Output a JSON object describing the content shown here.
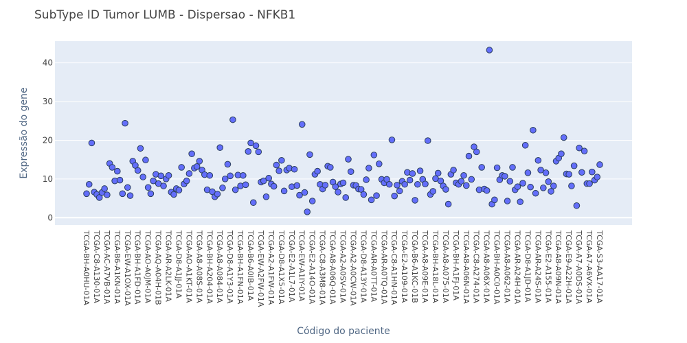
{
  "chart_data": {
    "type": "scatter",
    "title": "SubType ID Tumor LUMB - Dispersao - NFKB1",
    "xlabel": "Código do paciente",
    "ylabel": "Expressão do gene",
    "ylim": [
      -1.9,
      45.6
    ],
    "yticks": [
      0,
      10,
      20,
      30,
      40
    ],
    "grid": true,
    "legend": "none",
    "colors": {
      "marker_fill": "#636efa",
      "marker_edge": "#2a3f5f",
      "plot_bg": "#e5ecf6",
      "grid": "#ffffff"
    },
    "x_tick_labels": [
      "TCGA-BH-A0HU-01A",
      "TCGA-C8-A130-01A",
      "TCGA-AC-A7VB-01A",
      "TCGA-B6-A1KN-01A",
      "TCGA-EW-A1OX-01A",
      "TCGA-BH-A1FD-01A",
      "TCGA-AO-A0JM-01A",
      "TCGA-AQ-A04H-01B",
      "TCGA-AR-A2LK-01A",
      "TCGA-D8-A1JJ-01A",
      "TCGA-AO-A1KT-01A",
      "TCGA-A8-A08S-01A",
      "TCGA-BH-A204-01A",
      "TCGA-A8-A084-01A",
      "TCGA-D8-A1Y3-01A",
      "TCGA-BH-A1FN-01A",
      "TCGA-B6-A0IB-01A",
      "TCGA-EW-A2FW-01A",
      "TCGA-A2-A1FW-01A",
      "TCGA-D8-A1X5-01A",
      "TCGA-E2-A1L7-01A",
      "TCGA-EW-A1IY-01A",
      "TCGA-E2-A14O-01A",
      "TCGA-C8-A3M8-01A",
      "TCGA-A8-A06Q-01A",
      "TCGA-A2-A0SV-01A",
      "TCGA-A2-A0CW-01A",
      "TCGA-D8-A13Y-01A",
      "TCGA-AR-A0TT-01A",
      "TCGA-AR-A0TQ-01A",
      "TCGA-C8-A1HN-01A",
      "TCGA-E2-A109-01A",
      "TCGA-B6-A1KC-01B",
      "TCGA-A8-A09E-01A",
      "TCGA-BH-A18L-01A",
      "TCGA-A8-A075-01A",
      "TCGA-BH-A1FJ-01A",
      "TCGA-A8-A06N-01A",
      "TCGA-C8-A274-01A",
      "TCGA-A8-A06X-01A",
      "TCGA-BH-A0C0-01A",
      "TCGA-A8-A062-01A",
      "TCGA-AR-A24H-01A",
      "TCGA-D8-A1JD-01A",
      "TCGA-AR-A24S-01A",
      "TCGA-E2-A155-01A",
      "TCGA-A8-A09N-01A",
      "TCGA-E9-A22H-01A",
      "TCGA-A7-A0DS-01A",
      "TCGA-A7-A6VX-01A",
      "TCGA-S3-AA17-01A"
    ],
    "y": [
      6.2,
      8.6,
      19.3,
      6.6,
      6.0,
      5.2,
      6.5,
      7.5,
      5.9,
      14.0,
      13.0,
      9.5,
      12.0,
      9.7,
      6.2,
      24.4,
      7.8,
      5.7,
      14.6,
      13.5,
      12.2,
      17.9,
      10.5,
      14.9,
      7.8,
      6.2,
      9.5,
      11.2,
      8.8,
      10.8,
      8.2,
      10.0,
      10.9,
      6.6,
      6.0,
      7.5,
      7.1,
      13.0,
      8.7,
      9.5,
      11.4,
      16.5,
      12.8,
      13.2,
      14.6,
      12.3,
      11.1,
      7.2,
      10.9,
      6.7,
      5.4,
      6.1,
      18.1,
      7.7,
      10.0,
      13.8,
      10.8,
      25.3,
      7.2,
      11.0,
      8.2,
      10.9,
      8.5,
      17.1,
      19.3,
      3.9,
      18.6,
      17.0,
      9.2,
      9.5,
      5.4,
      10.2,
      8.7,
      8.1,
      13.6,
      12.1,
      14.8,
      6.9,
      12.3,
      12.8,
      8.0,
      12.5,
      8.3,
      5.8,
      24.1,
      6.5,
      1.5,
      16.3,
      4.3,
      11.2,
      12.0,
      8.6,
      7.4,
      8.4,
      13.3,
      13.0,
      9.2,
      8.0,
      6.6,
      8.7,
      9.0,
      5.2,
      15.1,
      11.9,
      8.4,
      8.3,
      7.4,
      7.3,
      6.0,
      9.8,
      12.8,
      4.6,
      16.2,
      5.7,
      13.9,
      9.9,
      9.0,
      9.9,
      8.6,
      20.1,
      5.6,
      8.4,
      6.9,
      9.4,
      8.6,
      11.7,
      9.7,
      11.4,
      4.5,
      8.6,
      12.1,
      9.9,
      8.7,
      19.9,
      6.0,
      6.8,
      10.1,
      11.5,
      9.5,
      8.2,
      7.3,
      3.5,
      11.2,
      12.3,
      9.0,
      8.6,
      9.4,
      10.9,
      8.3,
      15.9,
      9.9,
      18.3,
      17.0,
      7.2,
      13.0,
      7.4,
      7.0,
      43.3,
      3.5,
      4.6,
      12.9,
      9.8,
      10.9,
      10.7,
      4.3,
      9.4,
      13.0,
      7.2,
      8.0,
      4.1,
      8.9,
      18.7,
      11.6,
      7.9,
      22.6,
      6.3,
      14.8,
      12.3,
      7.7,
      11.6,
      9.3,
      6.8,
      8.2,
      14.6,
      15.4,
      16.5,
      20.7,
      11.3,
      11.2,
      8.2,
      13.4,
      3.1,
      18.0,
      11.7,
      17.2,
      8.8,
      8.8,
      11.8,
      9.7,
      10.5,
      13.7
    ]
  }
}
